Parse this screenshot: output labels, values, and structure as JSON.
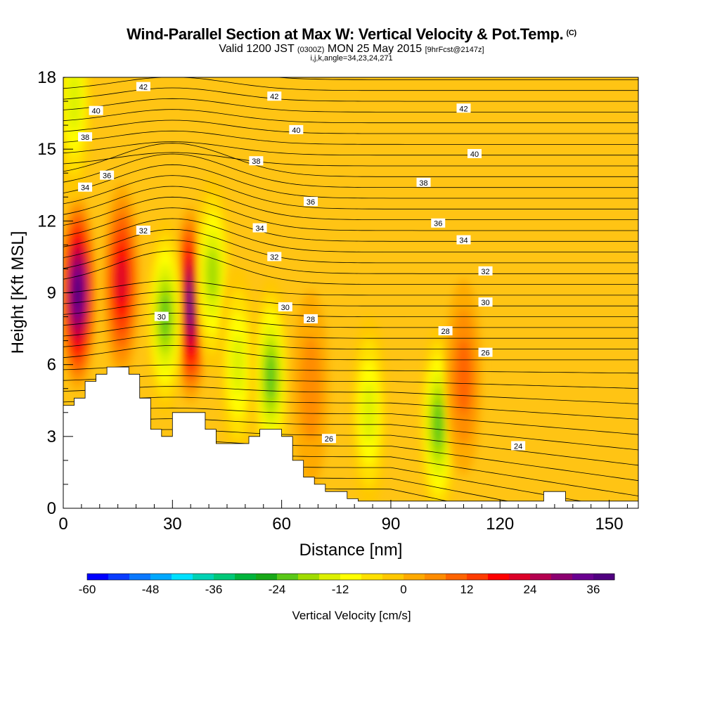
{
  "header": {
    "title": "Wind-Parallel Section at Max W: Vertical Velocity & Pot.Temp.",
    "copyright": "(C)",
    "valid_prefix": "Valid 1200 JST",
    "valid_utc": "(0300Z)",
    "valid_date": "MON 25 May 2015",
    "forecast": "[9hrFcst@2147z]",
    "indices": "i,j,k,angle=34,23,24,271"
  },
  "chart_data": {
    "type": "heatmap",
    "xlabel": "Distance [nm]",
    "ylabel": "Height [Kft MSL]",
    "xlim": [
      0,
      158
    ],
    "ylim": [
      0,
      18
    ],
    "x_ticks": [
      0,
      30,
      60,
      90,
      120,
      150
    ],
    "y_ticks": [
      0,
      3,
      6,
      9,
      12,
      15,
      18
    ],
    "colorbar": {
      "title": "Vertical Velocity [cm/s]",
      "min": -60,
      "max": 40,
      "step": 4,
      "tick_values": [
        -60,
        -48,
        -36,
        -24,
        -12,
        0,
        12,
        24,
        36
      ],
      "colors": [
        "#0000ff",
        "#0a3cff",
        "#0a78ff",
        "#00a8ff",
        "#00e0ff",
        "#00d2b4",
        "#00c878",
        "#00b43c",
        "#18a818",
        "#5ac818",
        "#a0dc00",
        "#dcf000",
        "#ffff00",
        "#ffe000",
        "#ffc800",
        "#ffaa00",
        "#ff8c00",
        "#ff6400",
        "#ff3c00",
        "#ff0000",
        "#dc0028",
        "#b40050",
        "#8c0070",
        "#6a0090",
        "#500080"
      ]
    },
    "velocity_features": [
      {
        "x": 4,
        "y": 9.0,
        "w": -0.1,
        "peak": 38
      },
      {
        "x": 16,
        "y": 9.5,
        "peak": 22
      },
      {
        "x": 35,
        "y": 8.5,
        "peak": 34
      },
      {
        "x": 28,
        "y": 8.0,
        "peak": -22
      },
      {
        "x": 41,
        "y": 9.8,
        "peak": -20
      },
      {
        "x": 48,
        "y": 6.0,
        "peak": -16
      },
      {
        "x": 57,
        "y": 5.5,
        "peak": -24
      },
      {
        "x": 84,
        "y": 4.0,
        "peak": -16
      },
      {
        "x": 103,
        "y": 3.5,
        "peak": -22
      },
      {
        "x": 110,
        "y": 5.5,
        "peak": 10
      },
      {
        "x": 68,
        "y": 5.0,
        "peak": 8
      },
      {
        "x": 3,
        "y": 17.0,
        "peak": -16
      }
    ],
    "terrain_height_kft": [
      [
        0,
        4.3
      ],
      [
        3,
        4.3
      ],
      [
        3,
        4.6
      ],
      [
        6,
        4.6
      ],
      [
        6,
        5.3
      ],
      [
        9,
        5.3
      ],
      [
        9,
        5.6
      ],
      [
        12,
        5.6
      ],
      [
        12,
        5.9
      ],
      [
        18,
        5.9
      ],
      [
        18,
        5.6
      ],
      [
        21,
        5.6
      ],
      [
        21,
        4.6
      ],
      [
        24,
        4.6
      ],
      [
        24,
        3.3
      ],
      [
        27,
        3.3
      ],
      [
        27,
        3.0
      ],
      [
        30,
        3.0
      ],
      [
        30,
        4.0
      ],
      [
        39,
        4.0
      ],
      [
        39,
        3.3
      ],
      [
        42,
        3.3
      ],
      [
        42,
        2.7
      ],
      [
        51,
        2.7
      ],
      [
        51,
        3.0
      ],
      [
        54,
        3.0
      ],
      [
        54,
        3.3
      ],
      [
        60,
        3.3
      ],
      [
        60,
        3.0
      ],
      [
        63,
        3.0
      ],
      [
        63,
        2.0
      ],
      [
        66,
        2.0
      ],
      [
        66,
        1.3
      ],
      [
        69,
        1.3
      ],
      [
        69,
        1.0
      ],
      [
        72,
        1.0
      ],
      [
        72,
        0.7
      ],
      [
        78,
        0.7
      ],
      [
        78,
        0.4
      ],
      [
        81,
        0.4
      ],
      [
        81,
        0.3
      ],
      [
        132,
        0.3
      ],
      [
        132,
        0.7
      ],
      [
        138,
        0.7
      ],
      [
        138,
        0.3
      ],
      [
        158,
        0.3
      ]
    ],
    "potential_temperature_labels": [
      {
        "value": "42",
        "x": 22,
        "y": 17.6
      },
      {
        "value": "42",
        "x": 58,
        "y": 17.2
      },
      {
        "value": "42",
        "x": 110,
        "y": 16.7
      },
      {
        "value": "40",
        "x": 9,
        "y": 16.6
      },
      {
        "value": "40",
        "x": 64,
        "y": 15.8
      },
      {
        "value": "40",
        "x": 113,
        "y": 14.8
      },
      {
        "value": "38",
        "x": 6,
        "y": 15.5
      },
      {
        "value": "38",
        "x": 53,
        "y": 14.5
      },
      {
        "value": "38",
        "x": 99,
        "y": 13.6
      },
      {
        "value": "36",
        "x": 12,
        "y": 13.9
      },
      {
        "value": "36",
        "x": 68,
        "y": 12.8
      },
      {
        "value": "36",
        "x": 103,
        "y": 11.9
      },
      {
        "value": "34",
        "x": 6,
        "y": 13.4
      },
      {
        "value": "34",
        "x": 54,
        "y": 11.7
      },
      {
        "value": "34",
        "x": 110,
        "y": 11.2
      },
      {
        "value": "32",
        "x": 22,
        "y": 11.6
      },
      {
        "value": "32",
        "x": 58,
        "y": 10.5
      },
      {
        "value": "32",
        "x": 116,
        "y": 9.9
      },
      {
        "value": "30",
        "x": 27,
        "y": 8.0
      },
      {
        "value": "30",
        "x": 61,
        "y": 8.4
      },
      {
        "value": "30",
        "x": 116,
        "y": 8.6
      },
      {
        "value": "28",
        "x": 68,
        "y": 7.9
      },
      {
        "value": "28",
        "x": 105,
        "y": 7.4
      },
      {
        "value": "26",
        "x": 116,
        "y": 6.5
      },
      {
        "value": "26",
        "x": 73,
        "y": 2.9
      },
      {
        "value": "24",
        "x": 125,
        "y": 2.6
      }
    ]
  }
}
